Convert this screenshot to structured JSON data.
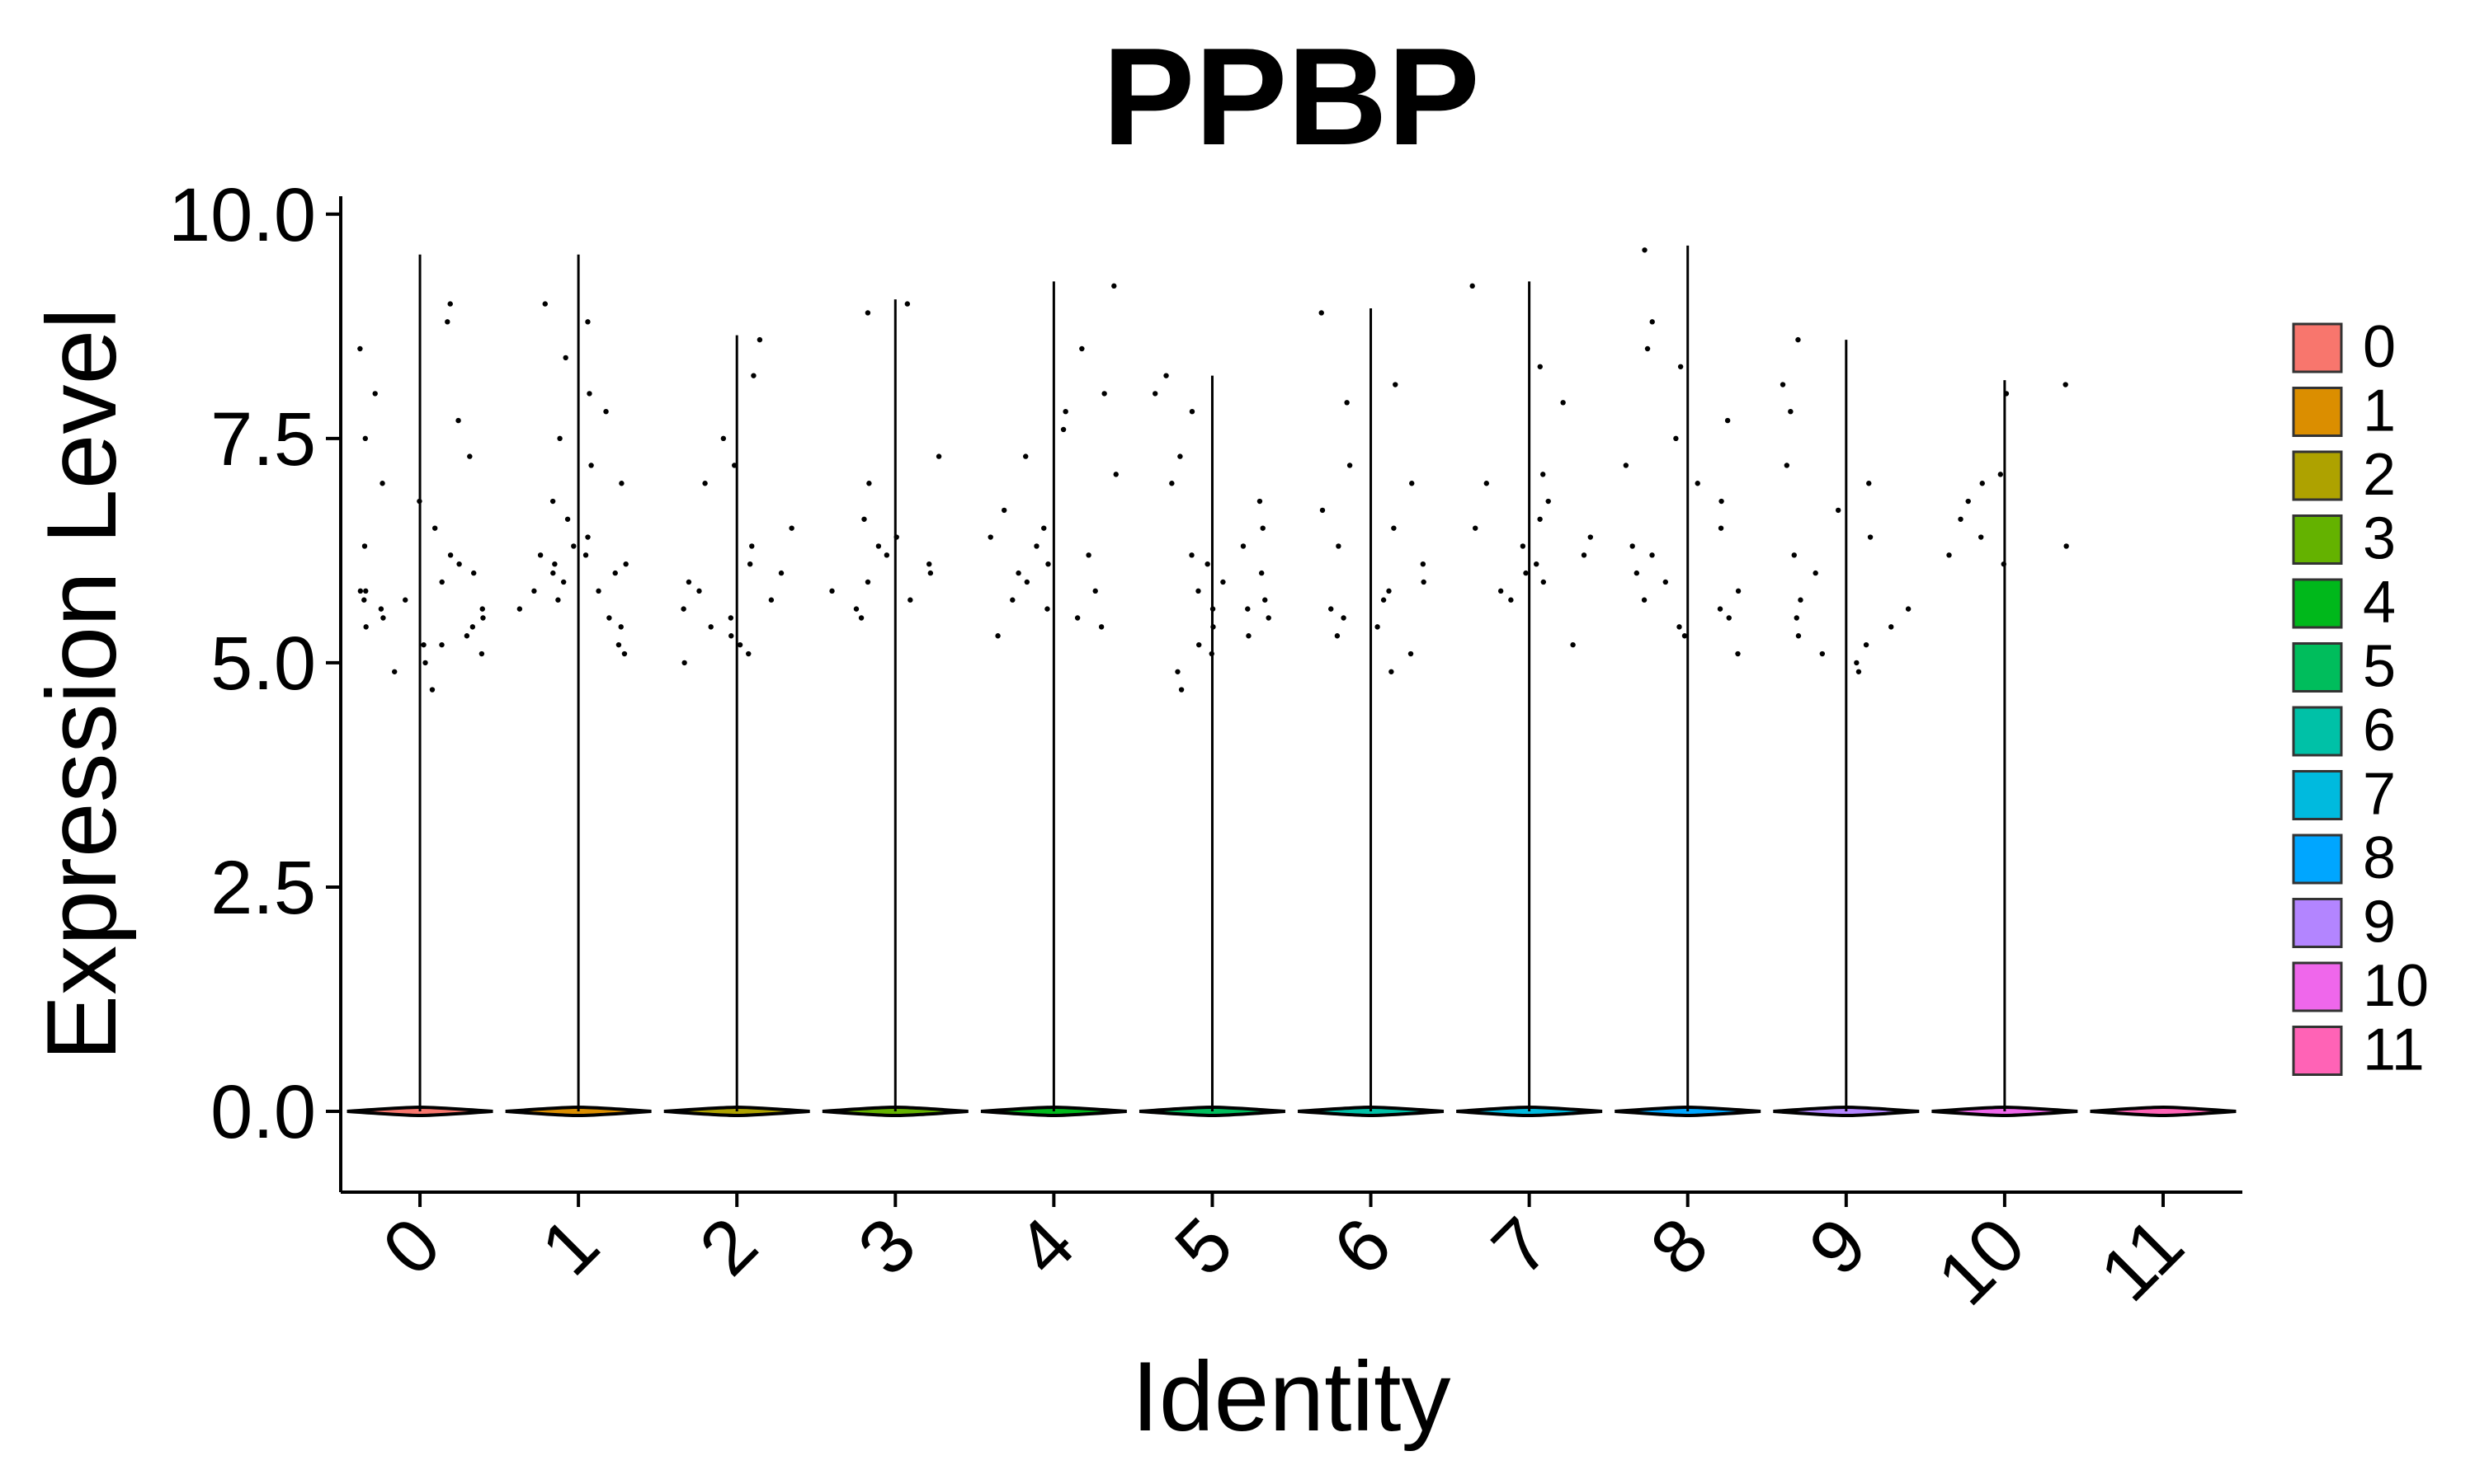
{
  "chart_data": {
    "type": "violin",
    "title": "PPBP",
    "xlabel": "Identity",
    "ylabel": "Expression Level",
    "ylim": [
      -0.9,
      10.2
    ],
    "yticks": [
      0.0,
      2.5,
      5.0,
      7.5,
      10.0
    ],
    "ytick_labels": [
      "0.0",
      "2.5",
      "5.0",
      "7.5",
      "10.0"
    ],
    "categories": [
      "0",
      "1",
      "2",
      "3",
      "4",
      "5",
      "6",
      "7",
      "8",
      "9",
      "10",
      "11"
    ],
    "series": [
      {
        "name": "0",
        "color": "#F8766D",
        "max": 9.55,
        "points": [
          4.7,
          4.9,
          5.0,
          5.1,
          5.2,
          5.2,
          5.3,
          5.4,
          5.4,
          5.5,
          5.5,
          5.6,
          5.6,
          5.7,
          5.7,
          5.8,
          5.8,
          5.9,
          6.0,
          6.1,
          6.2,
          6.3,
          6.5,
          6.8,
          7.0,
          7.3,
          7.5,
          7.7,
          8.0,
          8.5,
          8.8,
          9.0
        ]
      },
      {
        "name": "1",
        "color": "#DB8E00",
        "max": 9.55,
        "points": [
          5.1,
          5.2,
          5.4,
          5.5,
          5.6,
          5.7,
          5.8,
          5.8,
          5.9,
          6.0,
          6.0,
          6.1,
          6.1,
          6.2,
          6.2,
          6.3,
          6.4,
          6.6,
          6.8,
          7.0,
          7.2,
          7.5,
          7.8,
          8.0,
          8.4,
          8.8,
          9.0
        ]
      },
      {
        "name": "2",
        "color": "#AEA200",
        "max": 8.65,
        "points": [
          5.0,
          5.1,
          5.2,
          5.3,
          5.4,
          5.5,
          5.6,
          5.7,
          5.8,
          5.9,
          6.0,
          6.1,
          6.3,
          6.5,
          7.0,
          7.2,
          7.5,
          8.2,
          8.6
        ]
      },
      {
        "name": "3",
        "color": "#64B200",
        "max": 9.05,
        "points": [
          5.5,
          5.6,
          5.7,
          5.8,
          5.9,
          6.0,
          6.1,
          6.2,
          6.3,
          6.4,
          6.6,
          7.0,
          7.3,
          8.9,
          9.0
        ]
      },
      {
        "name": "4",
        "color": "#00B81B",
        "max": 9.25,
        "points": [
          5.3,
          5.4,
          5.5,
          5.6,
          5.7,
          5.8,
          5.9,
          6.0,
          6.1,
          6.2,
          6.3,
          6.4,
          6.5,
          6.7,
          7.1,
          7.3,
          7.6,
          7.8,
          8.0,
          8.5,
          9.2
        ]
      },
      {
        "name": "5",
        "color": "#00BD5C",
        "max": 8.2,
        "points": [
          4.7,
          4.9,
          5.1,
          5.2,
          5.3,
          5.4,
          5.5,
          5.6,
          5.6,
          5.7,
          5.8,
          5.9,
          6.0,
          6.1,
          6.2,
          6.3,
          6.5,
          6.8,
          7.0,
          7.3,
          7.8,
          8.0,
          8.2
        ]
      },
      {
        "name": "6",
        "color": "#00C1A7",
        "max": 8.95,
        "points": [
          4.9,
          5.1,
          5.3,
          5.4,
          5.5,
          5.6,
          5.7,
          5.8,
          5.9,
          6.1,
          6.3,
          6.5,
          6.7,
          7.0,
          7.2,
          7.9,
          8.1,
          8.9
        ]
      },
      {
        "name": "7",
        "color": "#00BADE",
        "max": 9.25,
        "points": [
          5.2,
          5.7,
          5.8,
          5.9,
          6.0,
          6.1,
          6.2,
          6.3,
          6.4,
          6.5,
          6.6,
          6.8,
          7.0,
          7.1,
          7.9,
          8.3,
          9.2
        ]
      },
      {
        "name": "8",
        "color": "#00A6FF",
        "max": 9.65,
        "points": [
          5.1,
          5.3,
          5.4,
          5.5,
          5.6,
          5.7,
          5.8,
          5.9,
          6.0,
          6.2,
          6.3,
          6.5,
          6.8,
          7.0,
          7.2,
          7.5,
          7.7,
          8.3,
          8.5,
          8.8,
          9.6
        ]
      },
      {
        "name": "9",
        "color": "#B385FF",
        "max": 8.6,
        "points": [
          4.9,
          5.0,
          5.1,
          5.2,
          5.3,
          5.4,
          5.5,
          5.6,
          5.7,
          6.0,
          6.2,
          6.4,
          6.7,
          7.0,
          7.2,
          7.8,
          8.1,
          8.6
        ]
      },
      {
        "name": "10",
        "color": "#EF67EB",
        "max": 8.15,
        "points": [
          6.1,
          6.2,
          6.3,
          6.4,
          6.6,
          6.8,
          7.0,
          7.1,
          8.0,
          8.1
        ]
      },
      {
        "name": "11",
        "color": "#FF63B6",
        "max": 0,
        "points": []
      }
    ],
    "legend": {
      "position": "right",
      "entries": [
        "0",
        "1",
        "2",
        "3",
        "4",
        "5",
        "6",
        "7",
        "8",
        "9",
        "10",
        "11"
      ]
    },
    "grid": false
  }
}
